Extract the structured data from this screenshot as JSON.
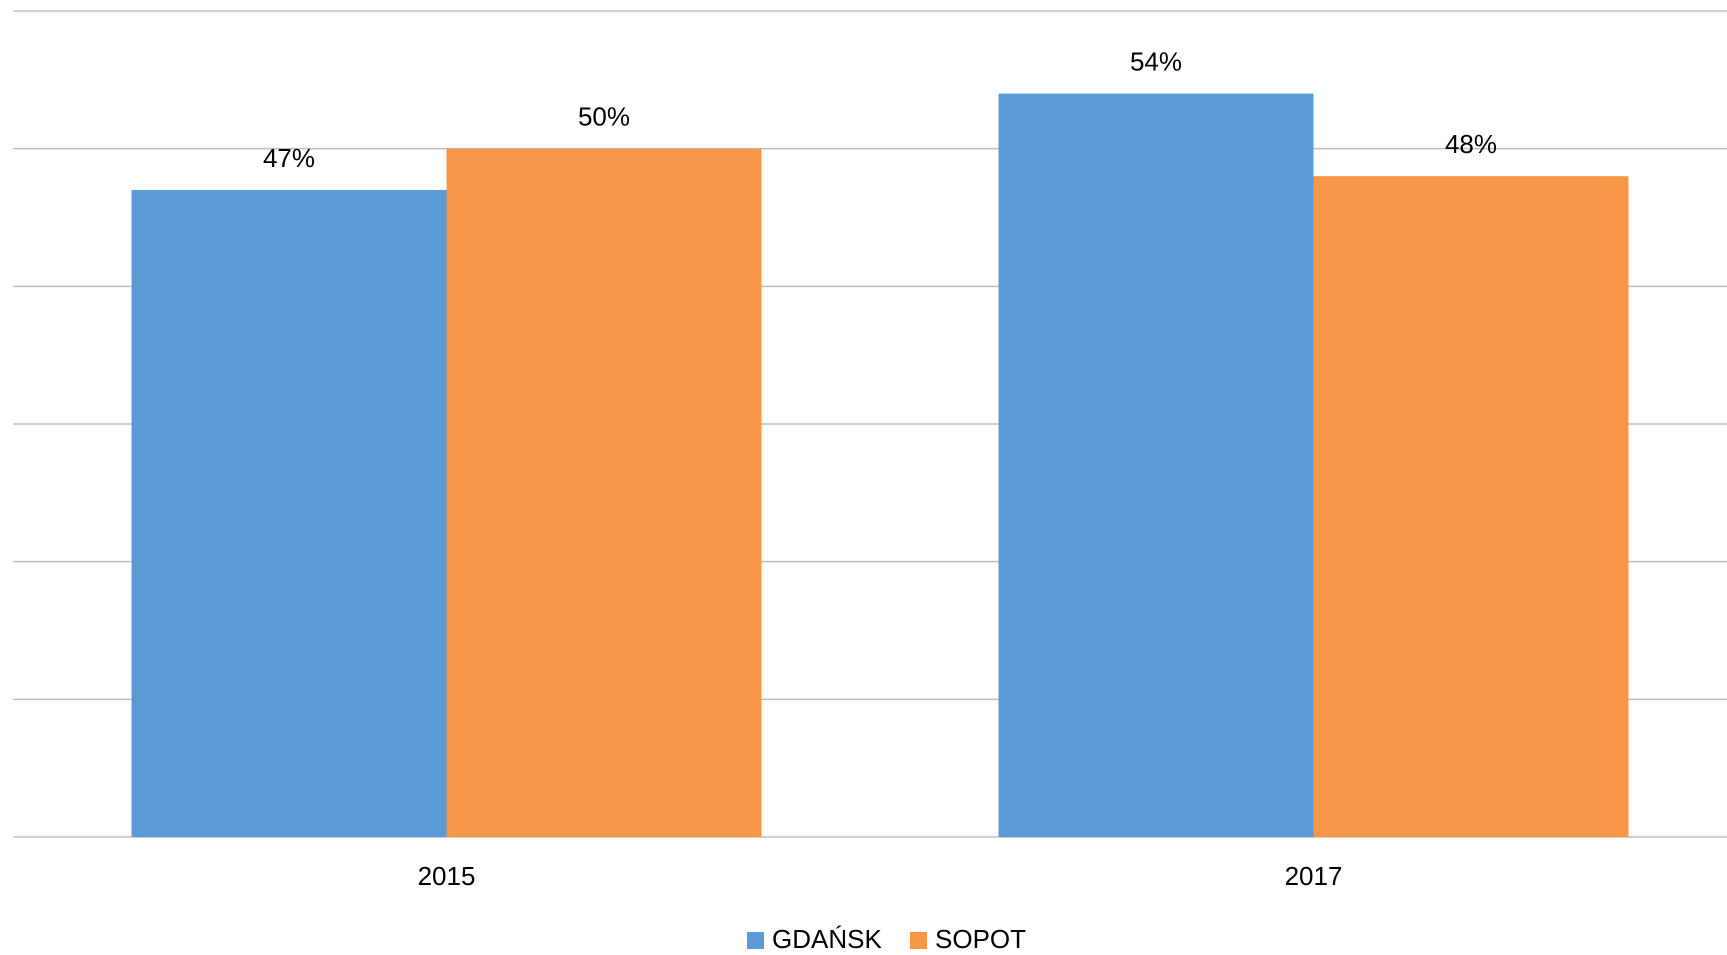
{
  "chart_data": {
    "type": "bar",
    "categories": [
      "2015",
      "2017"
    ],
    "series": [
      {
        "name": "GDAŃSK",
        "color": "#5b9bd5",
        "values": [
          47,
          54
        ],
        "value_labels": [
          "47%",
          "54%"
        ]
      },
      {
        "name": "SOPOT",
        "color": "#f79646",
        "values": [
          50,
          48
        ],
        "value_labels": [
          "50%",
          "48%"
        ]
      }
    ],
    "ylim": [
      0,
      60
    ],
    "yticks": [
      0,
      10,
      20,
      30,
      40,
      50,
      60
    ],
    "grid": true,
    "legend": "bottom"
  }
}
